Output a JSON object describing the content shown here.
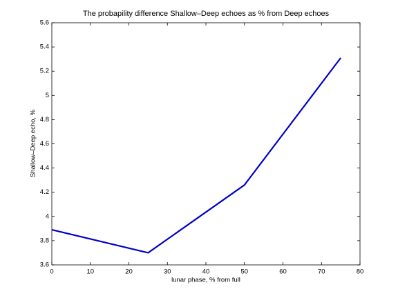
{
  "chart_data": {
    "type": "line",
    "title": "The probapility difference Shallow–Deep echoes as % from Deep echoes",
    "x_label": "lunar phase, % from full",
    "y_label": "Shallow–Deep echo, %",
    "x": [
      0,
      25,
      50,
      75
    ],
    "series": [
      {
        "name": "Shallow–Deep",
        "color": "#0000c8",
        "values": [
          3.89,
          3.7,
          4.26,
          5.31
        ]
      }
    ],
    "xlim": [
      0,
      80
    ],
    "xticks": [
      0,
      10,
      20,
      30,
      40,
      50,
      60,
      70,
      80
    ],
    "ylim": [
      3.6,
      5.6
    ],
    "yticks": [
      3.6,
      3.8,
      4,
      4.2,
      4.4,
      4.6,
      4.8,
      5,
      5.2,
      5.4,
      5.6
    ]
  }
}
